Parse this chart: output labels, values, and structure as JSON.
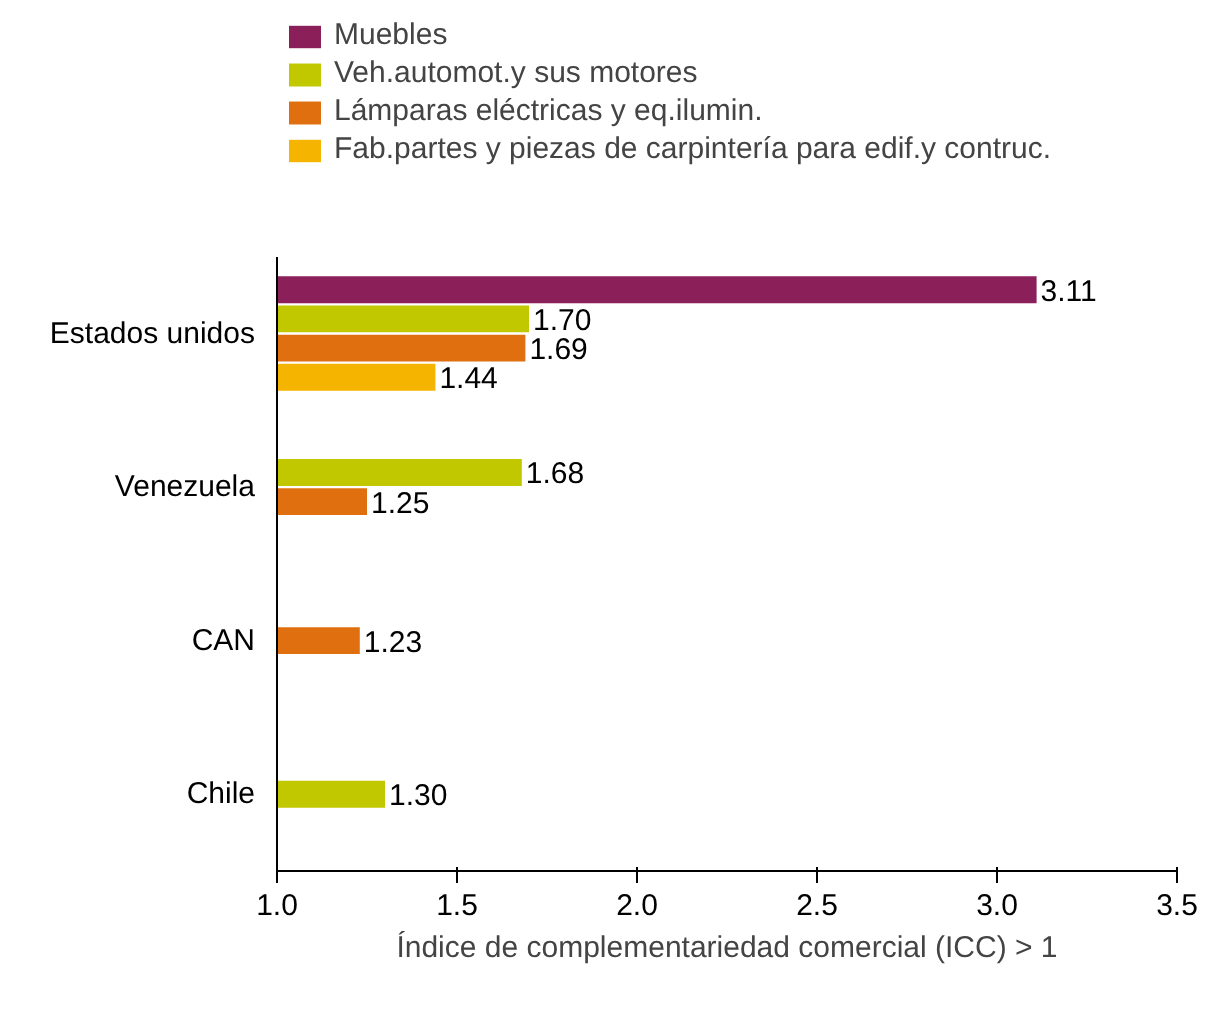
{
  "chart_data": {
    "type": "bar",
    "orientation": "horizontal",
    "xlabel": "Índice de complementariedad comercial (ICC) > 1",
    "categories": [
      "Estados unidos",
      "Venezuela",
      "CAN",
      "Chile"
    ],
    "series": [
      {
        "name": "Muebles",
        "color": "#8b1f5a",
        "values": [
          3.11,
          null,
          null,
          null
        ],
        "value_labels": [
          "3.11",
          null,
          null,
          null
        ]
      },
      {
        "name": "Veh.automot.y sus motores",
        "color": "#c2c800",
        "values": [
          1.7,
          1.68,
          null,
          1.3
        ],
        "value_labels": [
          "1.70",
          "1.68",
          null,
          "1.30"
        ]
      },
      {
        "name": "Lámparas eléctricas y eq.ilumin.",
        "color": "#e0700f",
        "values": [
          1.69,
          1.25,
          1.23,
          null
        ],
        "value_labels": [
          "1.69",
          "1.25",
          "1.23",
          null
        ]
      },
      {
        "name": "Fab.partes y piezas de carpintería para edif.y contruc.",
        "color": "#f4b400",
        "values": [
          1.44,
          null,
          null,
          null
        ],
        "value_labels": [
          "1.44",
          null,
          null,
          null
        ]
      }
    ],
    "xlim": [
      1.0,
      3.5
    ],
    "xticks": [
      {
        "value": 1.0,
        "label": "1.0"
      },
      {
        "value": 1.5,
        "label": "1.5"
      },
      {
        "value": 2.0,
        "label": "2.0"
      },
      {
        "value": 2.5,
        "label": "2.5"
      },
      {
        "value": 3.0,
        "label": "3.0"
      },
      {
        "value": 3.5,
        "label": "3.5"
      }
    ],
    "grid": false,
    "legend": "top"
  }
}
